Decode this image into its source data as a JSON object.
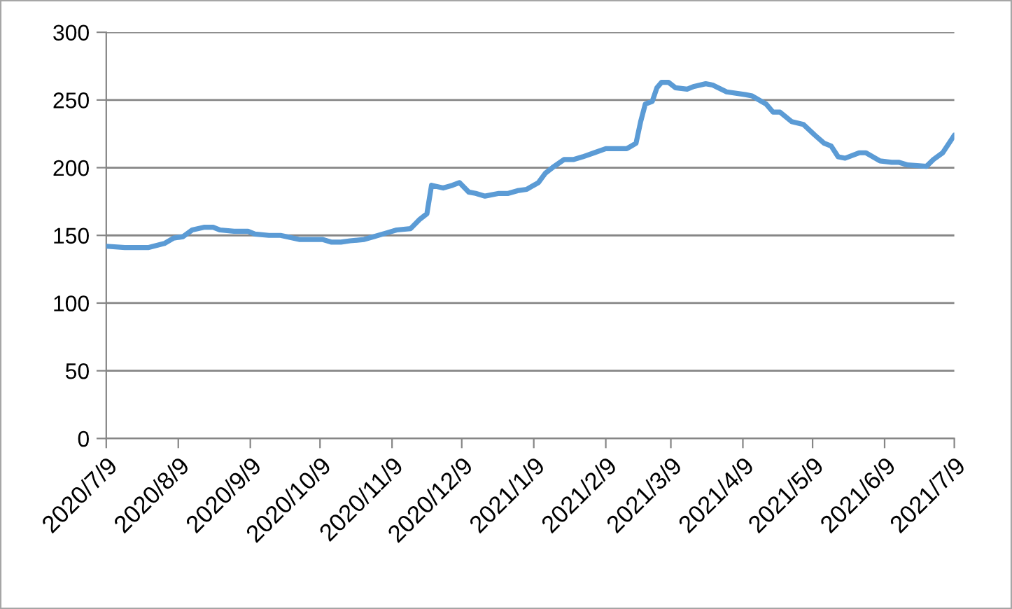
{
  "chart_data": {
    "type": "line",
    "x": [
      "2020-07-09",
      "2020-07-17",
      "2020-07-27",
      "2020-08-03",
      "2020-08-07",
      "2020-08-11",
      "2020-08-15",
      "2020-08-20",
      "2020-08-24",
      "2020-08-27",
      "2020-09-02",
      "2020-09-08",
      "2020-09-11",
      "2020-09-17",
      "2020-09-22",
      "2020-09-30",
      "2020-10-10",
      "2020-10-14",
      "2020-10-18",
      "2020-10-22",
      "2020-10-28",
      "2020-11-01",
      "2020-11-07",
      "2020-11-11",
      "2020-11-17",
      "2020-11-21",
      "2020-11-24",
      "2020-11-26",
      "2020-12-01",
      "2020-12-05",
      "2020-12-08",
      "2020-12-12",
      "2020-12-15",
      "2020-12-19",
      "2020-12-25",
      "2020-12-29",
      "2021-01-02",
      "2021-01-06",
      "2021-01-11",
      "2021-01-14",
      "2021-01-17",
      "2021-01-22",
      "2021-01-26",
      "2021-01-30",
      "2021-02-04",
      "2021-02-09",
      "2021-02-18",
      "2021-02-20",
      "2021-02-22",
      "2021-02-24",
      "2021-02-26",
      "2021-03-01",
      "2021-03-03",
      "2021-03-05",
      "2021-03-08",
      "2021-03-11",
      "2021-03-16",
      "2021-03-19",
      "2021-03-24",
      "2021-03-27",
      "2021-04-02",
      "2021-04-10",
      "2021-04-13",
      "2021-04-17",
      "2021-04-19",
      "2021-04-22",
      "2021-04-25",
      "2021-04-30",
      "2021-05-05",
      "2021-05-10",
      "2021-05-14",
      "2021-05-17",
      "2021-05-20",
      "2021-05-23",
      "2021-05-29",
      "2021-06-01",
      "2021-06-07",
      "2021-06-12",
      "2021-06-15",
      "2021-06-19",
      "2021-06-27",
      "2021-06-30",
      "2021-07-04",
      "2021-07-09"
    ],
    "series": [
      {
        "color": "#5b9bd5",
        "values": [
          142,
          141,
          141,
          144,
          148,
          149,
          154,
          156,
          156,
          154,
          153,
          153,
          151,
          150,
          150,
          147,
          147,
          145,
          145,
          146,
          147,
          149,
          152,
          154,
          155,
          162,
          166,
          187,
          185,
          187,
          189,
          182,
          181,
          179,
          181,
          181,
          183,
          184,
          189,
          196,
          200,
          206,
          206,
          208,
          211,
          214,
          214,
          216,
          218,
          234,
          247,
          249,
          259,
          263,
          263,
          259,
          258,
          260,
          262,
          261,
          256,
          254,
          253,
          249,
          247,
          241,
          241,
          234,
          232,
          224,
          218,
          216,
          208,
          207,
          211,
          211,
          205,
          204,
          204,
          202,
          201,
          206,
          211,
          224
        ]
      }
    ],
    "xlim": [
      "2020-07-09",
      "2021-07-09"
    ],
    "xticks": [
      {
        "value": "2020-07-09",
        "label": "2020/7/9"
      },
      {
        "value": "2020-08-09",
        "label": "2020/8/9"
      },
      {
        "value": "2020-09-09",
        "label": "2020/9/9"
      },
      {
        "value": "2020-10-09",
        "label": "2020/10/9"
      },
      {
        "value": "2020-11-09",
        "label": "2020/11/9"
      },
      {
        "value": "2020-12-09",
        "label": "2020/12/9"
      },
      {
        "value": "2021-01-09",
        "label": "2021/1/9"
      },
      {
        "value": "2021-02-09",
        "label": "2021/2/9"
      },
      {
        "value": "2021-03-09",
        "label": "2021/3/9"
      },
      {
        "value": "2021-04-09",
        "label": "2021/4/9"
      },
      {
        "value": "2021-05-09",
        "label": "2021/5/9"
      },
      {
        "value": "2021-06-09",
        "label": "2021/6/9"
      },
      {
        "value": "2021-07-09",
        "label": "2021/7/9"
      }
    ],
    "ylim": [
      0,
      300
    ],
    "yticks": [
      0,
      50,
      100,
      150,
      200,
      250,
      300
    ],
    "grid": "y",
    "legend": false,
    "marker": "none",
    "line_style": "solid"
  }
}
